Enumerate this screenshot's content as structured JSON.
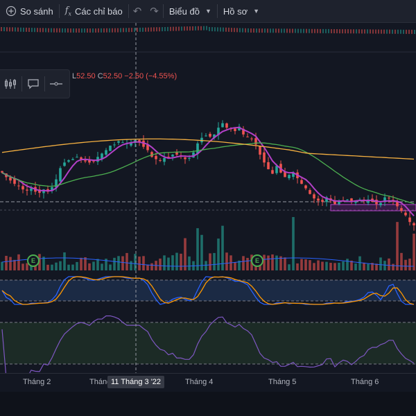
{
  "toolbar": {
    "compare_label": "So sánh",
    "indicators_label": "Các chỉ báo",
    "chart_type_label": "Biểu đồ",
    "profile_label": "Hồ sơ"
  },
  "ohlc": {
    "low_key": "L",
    "low_value": "52.50",
    "close_key": "C",
    "close_value": "52.50",
    "change": "−2.50",
    "change_pct": "(−4.55%)"
  },
  "time_axis": {
    "labels": [
      "Tháng 2",
      "Tháng 3",
      "Tháng 4",
      "Tháng 5",
      "Tháng 6"
    ],
    "cursor_label": "11 Tháng 3 '22"
  },
  "events": [
    {
      "letter": "E"
    },
    {
      "letter": "E"
    }
  ],
  "colors": {
    "background": "#131722",
    "up": "#26a69a",
    "down": "#ef5350",
    "ma_fast": "#b340c8",
    "ma_mid": "#4caf50",
    "ma_slow": "#f5b041",
    "stoch_k": "#2962ff",
    "stoch_d": "#ff9800",
    "rsi": "#7e57c2"
  },
  "icons": [
    "compare-icon",
    "fx-icon",
    "undo-icon",
    "redo-icon",
    "chevron-down-icon",
    "candles-icon",
    "comment-icon",
    "line-tool-icon"
  ],
  "chart_data": {
    "type": "candlestick",
    "closes": [
      55,
      54.6,
      54.3,
      54,
      53.8,
      53.5,
      53.4,
      53.6,
      53.3,
      53.2,
      53.5,
      53.3,
      53.7,
      54.4,
      55.4,
      55.9,
      56.1,
      56.2,
      56.4,
      56.2,
      56.0,
      55.9,
      56.0,
      56.4,
      56.7,
      57.0,
      57.4,
      57.5,
      57.8,
      57.7,
      57.6,
      57.7,
      57.9,
      57.7,
      57.3,
      57.0,
      56.4,
      56.2,
      56.1,
      56.3,
      56.4,
      56.6,
      56.6,
      56.5,
      56.2,
      56.3,
      56.8,
      57.6,
      58.1,
      58.3,
      58.2,
      58.4,
      59.0,
      59.4,
      59.0,
      58.9,
      58.7,
      59.1,
      58.4,
      58.2,
      58.0,
      57.5,
      56.6,
      55.9,
      55.3,
      54.9,
      55.6,
      55.0,
      54.6,
      54.8,
      55.0,
      54.5,
      54.0,
      53.6,
      53.1,
      52.7,
      52.5,
      52.4,
      52.8,
      52.5,
      52.2,
      52.4,
      52.5,
      52.6,
      52.4,
      52.5,
      52.6,
      52.5,
      52.6,
      52.4,
      52.2,
      52.3,
      52.8,
      52.7,
      52.4,
      52.0,
      51.6,
      51.2,
      50.6,
      50.3
    ]
  }
}
